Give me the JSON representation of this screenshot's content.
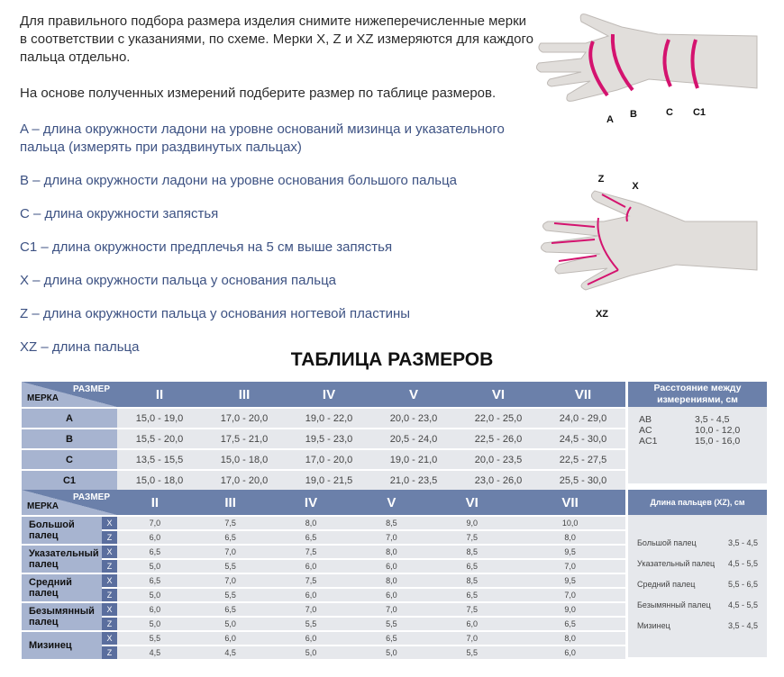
{
  "intro": [
    "Для правильного подбора размера изделия снимите нижеперечисленные мерки в соответствии с указаниями, по схеме. Мерки X, Z и XZ измеряются для каждого пальца отдельно.",
    "На основе полученных измерений подберите размер по таблице размеров."
  ],
  "definitions": [
    "A – длина окружности ладони на уровне оснований мизинца и указательного пальца (измерять при раздвинутых пальцах)",
    "B – длина окружности ладони на уровне основания большого пальца",
    "C – длина окружности запястья",
    "C1 – длина окружности предплечья на 5 см выше запястья",
    "X – длина окружности пальца у основания пальца",
    "Z – длина окружности пальца у основания ногтевой пластины",
    "XZ – длина пальца"
  ],
  "diagram_labels": {
    "top": [
      "A",
      "B",
      "C",
      "C1"
    ],
    "bottom": [
      "Z",
      "X",
      "XZ"
    ]
  },
  "title": "ТАБЛИЦА РАЗМЕРОВ",
  "colors": {
    "header": "#6b80aa",
    "label_col": "#a7b4d0",
    "cell": "#e6e8ec",
    "accent": "#d4136f"
  },
  "table1": {
    "corner_size": "РАЗМЕР",
    "corner_measure": "МЕРКА",
    "sizes": [
      "II",
      "III",
      "IV",
      "V",
      "VI",
      "VII"
    ],
    "rows": [
      {
        "label": "A",
        "values": [
          "15,0 - 19,0",
          "17,0 - 20,0",
          "19,0 - 22,0",
          "20,0 - 23,0",
          "22,0 - 25,0",
          "24,0 - 29,0"
        ]
      },
      {
        "label": "B",
        "values": [
          "15,5 - 20,0",
          "17,5 - 21,0",
          "19,5 - 23,0",
          "20,5 - 24,0",
          "22,5 - 26,0",
          "24,5 - 30,0"
        ]
      },
      {
        "label": "C",
        "values": [
          "13,5 - 15,5",
          "15,0 - 18,0",
          "17,0 - 20,0",
          "19,0 - 21,0",
          "20,0 - 23,5",
          "22,5 - 27,5"
        ]
      },
      {
        "label": "C1",
        "values": [
          "15,0 - 18,0",
          "17,0 - 20,0",
          "19,0 - 21,5",
          "21,0 - 23,5",
          "23,0 - 26,0",
          "25,5 - 30,0"
        ]
      }
    ]
  },
  "distances": {
    "title": "Расстояние между измерениями, см",
    "items": [
      {
        "k": "AB",
        "v": "3,5 - 4,5"
      },
      {
        "k": "AC",
        "v": "10,0 - 12,0"
      },
      {
        "k": "AC1",
        "v": "15,0 - 16,0"
      }
    ]
  },
  "table2": {
    "corner_size": "РАЗМЕР",
    "corner_measure": "МЕРКА",
    "sizes": [
      "II",
      "III",
      "IV",
      "V",
      "VI",
      "VII"
    ],
    "fingers": [
      {
        "label": "Большой палец",
        "x": [
          "7,0",
          "7,5",
          "8,0",
          "8,5",
          "9,0",
          "10,0"
        ],
        "z": [
          "6,0",
          "6,5",
          "6,5",
          "7,0",
          "7,5",
          "8,0"
        ]
      },
      {
        "label": "Указательный палец",
        "x": [
          "6,5",
          "7,0",
          "7,5",
          "8,0",
          "8,5",
          "9,5"
        ],
        "z": [
          "5,0",
          "5,5",
          "6,0",
          "6,0",
          "6,5",
          "7,0"
        ]
      },
      {
        "label": "Средний палец",
        "x": [
          "6,5",
          "7,0",
          "7,5",
          "8,0",
          "8,5",
          "9,5"
        ],
        "z": [
          "5,0",
          "5,5",
          "6,0",
          "6,0",
          "6,5",
          "7,0"
        ]
      },
      {
        "label": "Безымянный палец",
        "x": [
          "6,0",
          "6,5",
          "7,0",
          "7,0",
          "7,5",
          "9,0"
        ],
        "z": [
          "5,0",
          "5,0",
          "5,5",
          "5,5",
          "6,0",
          "6,5"
        ]
      },
      {
        "label": "Мизинец",
        "x": [
          "5,5",
          "6,0",
          "6,0",
          "6,5",
          "7,0",
          "8,0"
        ],
        "z": [
          "4,5",
          "4,5",
          "5,0",
          "5,0",
          "5,5",
          "6,0"
        ]
      }
    ],
    "xz_labels": [
      "X",
      "Z"
    ]
  },
  "finger_lengths": {
    "title": "Длина пальцев (XZ), см",
    "items": [
      {
        "k": "Большой палец",
        "v": "3,5 - 4,5"
      },
      {
        "k": "Указательный палец",
        "v": "4,5 - 5,5"
      },
      {
        "k": "Средний палец",
        "v": "5,5 - 6,5"
      },
      {
        "k": "Безымянный палец",
        "v": "4,5 - 5,5"
      },
      {
        "k": "Мизинец",
        "v": "3,5 - 4,5"
      }
    ]
  }
}
